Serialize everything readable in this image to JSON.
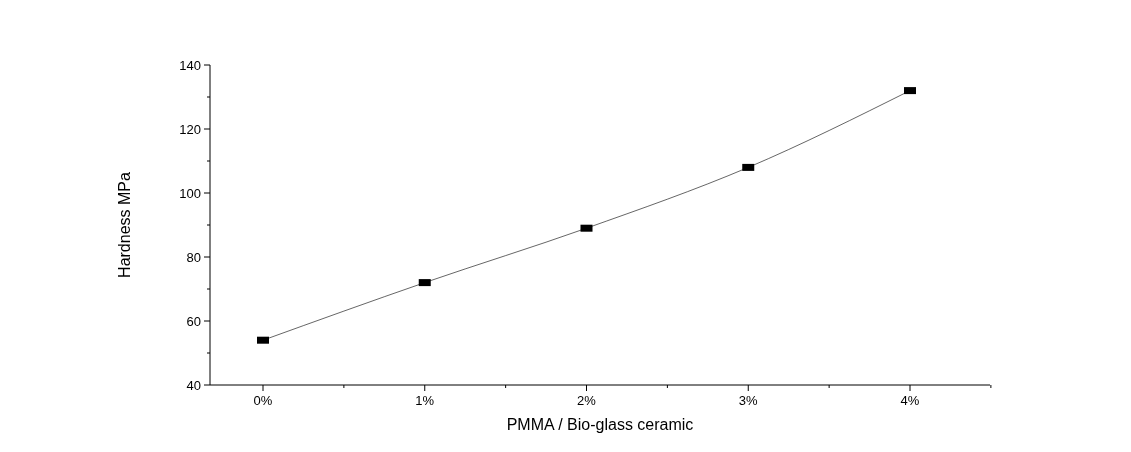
{
  "chart_data": {
    "type": "line",
    "xlabel": "PMMA / Bio-glass ceramic",
    "ylabel": "Hardness MPa",
    "categories": [
      "0%",
      "1%",
      "2%",
      "3%",
      "4%"
    ],
    "series": [
      {
        "color": "#000000",
        "values": [
          54,
          72,
          89,
          108,
          132
        ]
      }
    ],
    "ylim": [
      40,
      140
    ],
    "yticks": [
      40,
      60,
      80,
      100,
      120,
      140
    ],
    "marker": "square",
    "line_style": "solid",
    "grid": false
  }
}
